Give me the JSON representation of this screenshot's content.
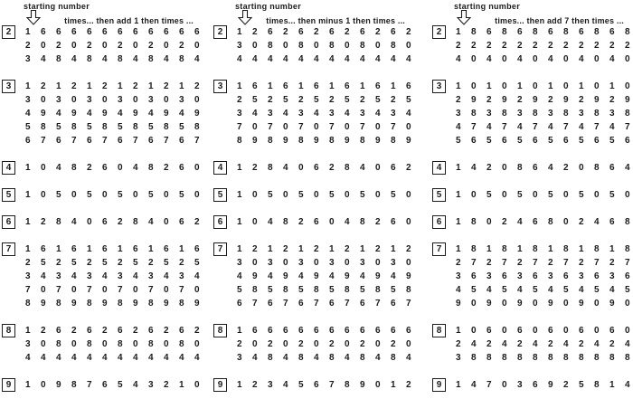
{
  "page_colors": {
    "background": "#ffffff",
    "ink": "#1c1c1c"
  },
  "icons": {
    "pointer": "down-arrow-icon"
  },
  "columns": [
    {
      "pointer_label": "starting number",
      "rule_label": "times... then add 1 then times ...",
      "groups": [
        {
          "start": "2",
          "rows": [
            "1 6 6 6 6 6 6 6 6 6 6 6",
            "2 0 2 0 2 0 2 0 2 0 2 0",
            "3 4 8 4 8 4 8 4 8 4 8 4"
          ]
        },
        {
          "start": "3",
          "rows": [
            "1 2 1 2 1 2 1 2 1 2 1 2",
            "3 0 3 0 3 0 3 0 3 0 3 0",
            "4 9 4 9 4 9 4 9 4 9 4 9",
            "5 8 5 8 5 8 5 8 5 8 5 8",
            "6 7 6 7 6 7 6 7 6 7 6 7"
          ]
        },
        {
          "start": "4",
          "rows": [
            "1 0 4 8 2 6 0 4 8 2 6 0"
          ]
        },
        {
          "start": "5",
          "rows": [
            "1 0 5 0 5 0 5 0 5 0 5 0"
          ]
        },
        {
          "start": "6",
          "rows": [
            "1 2 8 4 0 6 2 8 4 0 6 2"
          ]
        },
        {
          "start": "7",
          "rows": [
            "1 6 1 6 1 6 1 6 1 6 1 6",
            "2 5 2 5 2 5 2 5 2 5 2 5",
            "3 4 3 4 3 4 3 4 3 4 3 4",
            "7 0 7 0 7 0 7 0 7 0 7 0",
            "8 9 8 9 8 9 8 9 8 9 8 9"
          ]
        },
        {
          "start": "8",
          "rows": [
            "1 2 6 2 6 2 6 2 6 2 6 2",
            "3 0 8 0 8 0 8 0 8 0 8 0",
            "4 4 4 4 4 4 4 4 4 4 4 4"
          ]
        },
        {
          "start": "9",
          "rows": [
            "1 0 9 8 7 6 5 4 3 2 1 0"
          ]
        }
      ]
    },
    {
      "pointer_label": "starting number",
      "rule_label": "times... then minus 1 then times ...",
      "groups": [
        {
          "start": "2",
          "rows": [
            "1 2 6 2 6 2 6 2 6 2 6 2",
            "3 0 8 0 8 0 8 0 8 0 8 0",
            "4 4 4 4 4 4 4 4 4 4 4 4"
          ]
        },
        {
          "start": "3",
          "rows": [
            "1 6 1 6 1 6 1 6 1 6 1 6",
            "2 5 2 5 2 5 2 5 2 5 2 5",
            "3 4 3 4 3 4 3 4 3 4 3 4",
            "7 0 7 0 7 0 7 0 7 0 7 0",
            "8 9 8 9 8 9 8 9 8 9 8 9"
          ]
        },
        {
          "start": "4",
          "rows": [
            "1 2 8 4 0 6 2 8 4 0 6 2"
          ]
        },
        {
          "start": "5",
          "rows": [
            "1 0 5 0 5 0 5 0 5 0 5 0"
          ]
        },
        {
          "start": "6",
          "rows": [
            "1 0 4 8 2 6 0 4 8 2 6 0"
          ]
        },
        {
          "start": "7",
          "rows": [
            "1 2 1 2 1 2 1 2 1 2 1 2",
            "3 0 3 0 3 0 3 0 3 0 3 0",
            "4 9 4 9 4 9 4 9 4 9 4 9",
            "5 8 5 8 5 8 5 8 5 8 5 8",
            "6 7 6 7 6 7 6 7 6 7 6 7"
          ]
        },
        {
          "start": "8",
          "rows": [
            "1 6 6 6 6 6 6 6 6 6 6 6",
            "2 0 2 0 2 0 2 0 2 0 2 0",
            "3 4 8 4 8 4 8 4 8 4 8 4"
          ]
        },
        {
          "start": "9",
          "rows": [
            "1 2 3 4 5 6 7 8 9 0 1 2"
          ]
        }
      ]
    },
    {
      "pointer_label": "starting number",
      "rule_label": "times... then add 7 then times ...",
      "groups": [
        {
          "start": "2",
          "rows": [
            "1 8 6 8 6 8 6 8 6 8 6 8",
            "2 2 2 2 2 2 2 2 2 2 2 2",
            "4 0 4 0 4 0 4 0 4 0 4 0"
          ]
        },
        {
          "start": "3",
          "rows": [
            "1 0 1 0 1 0 1 0 1 0 1 0",
            "2 9 2 9 2 9 2 9 2 9 2 9",
            "3 8 3 8 3 8 3 8 3 8 3 8",
            "4 7 4 7 4 7 4 7 4 7 4 7",
            "5 6 5 6 5 6 5 6 5 6 5 6"
          ]
        },
        {
          "start": "4",
          "rows": [
            "1 4 2 0 8 6 4 2 0 8 6 4"
          ]
        },
        {
          "start": "5",
          "rows": [
            "1 0 5 0 5 0 5 0 5 0 5 0"
          ]
        },
        {
          "start": "6",
          "rows": [
            "1 8 0 2 4 6 8 0 2 4 6 8"
          ]
        },
        {
          "start": "7",
          "rows": [
            "1 8 1 8 1 8 1 8 1 8 1 8",
            "2 7 2 7 2 7 2 7 2 7 2 7",
            "3 6 3 6 3 6 3 6 3 6 3 6",
            "4 5 4 5 4 5 4 5 4 5 4 5",
            "9 0 9 0 9 0 9 0 9 0 9 0"
          ]
        },
        {
          "start": "8",
          "rows": [
            "1 0 6 0 6 0 6 0 6 0 6 0",
            "2 4 2 4 2 4 2 4 2 4 2 4",
            "3 8 8 8 8 8 8 8 8 8 8 8"
          ]
        },
        {
          "start": "9",
          "rows": [
            "1 4 7 0 3 6 9 2 5 8 1 4"
          ]
        }
      ]
    }
  ]
}
